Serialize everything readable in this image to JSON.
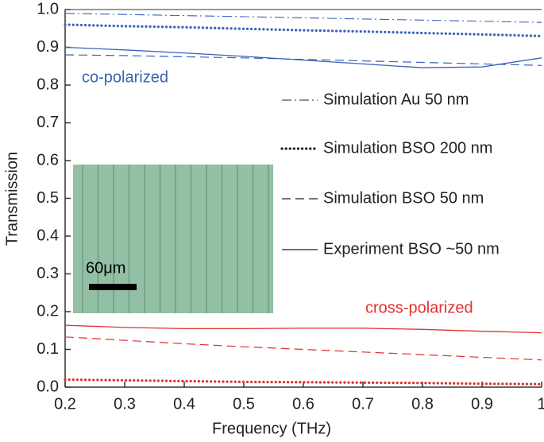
{
  "chart_data": {
    "type": "line",
    "xlabel": "Frequency (THz)",
    "ylabel": "Transmission",
    "xlim": [
      0.2,
      1
    ],
    "ylim": [
      0,
      1
    ],
    "xticks": [
      0.2,
      0.3,
      0.4,
      0.5,
      0.6,
      0.7,
      0.8,
      0.9,
      1
    ],
    "yticks": [
      {
        "value": 0,
        "label": "0.0"
      },
      0.1,
      0.2,
      0.3,
      0.4,
      0.5,
      0.6,
      0.7,
      0.8,
      0.9,
      {
        "value": 1,
        "label": "1.0"
      }
    ],
    "x": [
      0.2,
      0.3,
      0.4,
      0.5,
      0.6,
      0.7,
      0.8,
      0.9,
      1
    ],
    "series": [
      {
        "style": "dashdot",
        "color": "#3b63b5",
        "values": [
          0.99,
          0.987,
          0.984,
          0.981,
          0.978,
          0.975,
          0.972,
          0.969,
          0.966
        ]
      },
      {
        "style": "dotted",
        "color": "#3b63b5",
        "values": [
          0.96,
          0.956,
          0.953,
          0.949,
          0.945,
          0.942,
          0.938,
          0.934,
          0.93
        ]
      },
      {
        "style": "dashed",
        "color": "#3b63b5",
        "values": [
          0.88,
          0.878,
          0.875,
          0.872,
          0.868,
          0.864,
          0.86,
          0.856,
          0.852
        ]
      },
      {
        "style": "solid",
        "color": "#3b63b5",
        "values": [
          0.9,
          0.893,
          0.885,
          0.876,
          0.866,
          0.856,
          0.846,
          0.848,
          0.872
        ]
      },
      {
        "style": "solid",
        "color": "#e0322e",
        "values": [
          0.164,
          0.158,
          0.155,
          0.155,
          0.156,
          0.156,
          0.153,
          0.148,
          0.144
        ]
      },
      {
        "style": "dashed",
        "color": "#e0322e",
        "values": [
          0.133,
          0.124,
          0.115,
          0.107,
          0.1,
          0.093,
          0.086,
          0.079,
          0.072
        ]
      },
      {
        "style": "dotted",
        "color": "#e0322e",
        "values": [
          0.02,
          0.018,
          0.016,
          0.014,
          0.013,
          0.012,
          0.011,
          0.009,
          0.008
        ]
      }
    ],
    "legend": [
      {
        "label": "Simulation Au 50 nm",
        "style": "dashdot"
      },
      {
        "label": "Simulation BSO 200 nm",
        "style": "dotted"
      },
      {
        "label": "Simulation BSO 50 nm",
        "style": "dashed"
      },
      {
        "label": "Experiment BSO ~50 nm",
        "style": "solid"
      }
    ],
    "annotations": [
      {
        "text": "co-polarized",
        "color": "#3b63b5"
      },
      {
        "text": "cross-polarized",
        "color": "#e0322e"
      }
    ],
    "inset_label": "60μm"
  }
}
